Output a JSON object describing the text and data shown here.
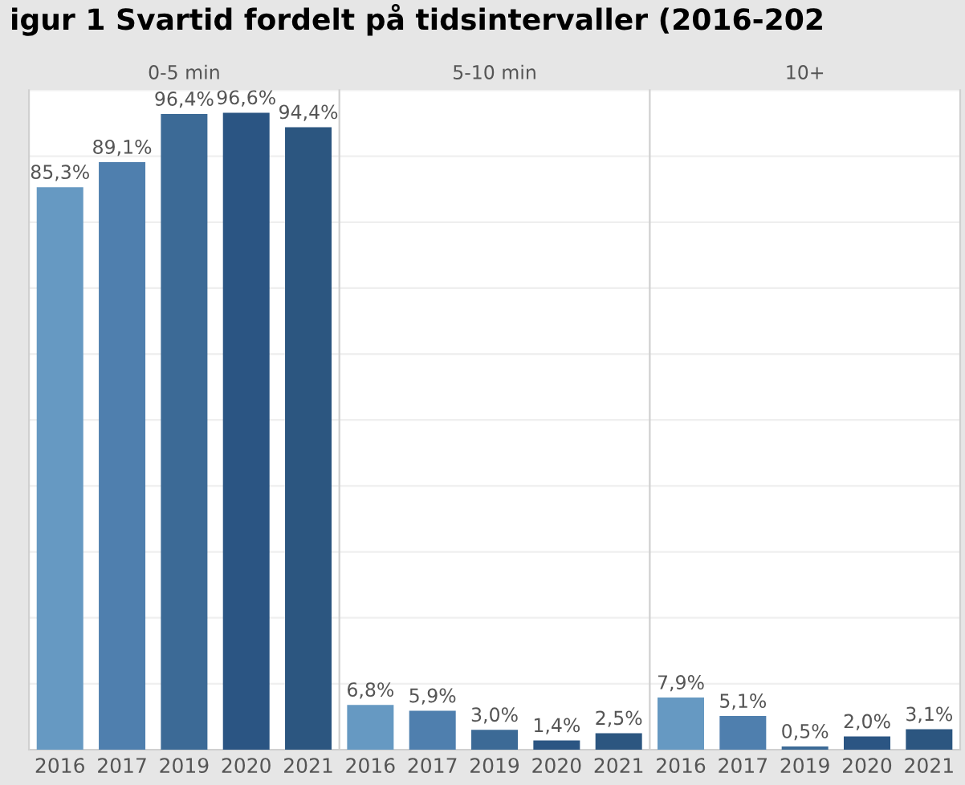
{
  "chart_data": [
    {
      "type": "bar",
      "title": "0-5 min",
      "annotations": [
        "igur 1 Svartid fordelt på tidsintervaller (2016-202"
      ],
      "categories": [
        "2016",
        "2017",
        "2019",
        "2020",
        "2021"
      ],
      "values": [
        85.3,
        89.1,
        96.4,
        96.6,
        94.4
      ],
      "value_labels": [
        "85,3%",
        "89,1%",
        "96,4%",
        "96,6%",
        "94,4%"
      ],
      "colors": [
        "#6699c2",
        "#4f7fae",
        "#3c6a96",
        "#2b5583",
        "#2c5680"
      ],
      "ylim": [
        0,
        100
      ],
      "yticks": [
        {
          "value": 0,
          "label": null
        },
        {
          "value": 10,
          "label": null
        },
        {
          "value": 20,
          "label": null
        },
        {
          "value": 30,
          "label": null
        },
        {
          "value": 40,
          "label": null
        },
        {
          "value": 50,
          "label": null
        },
        {
          "value": 60,
          "label": null
        },
        {
          "value": 70,
          "label": null
        },
        {
          "value": 80,
          "label": null
        },
        {
          "value": 90,
          "label": null
        },
        {
          "value": 100,
          "label": null
        }
      ],
      "tick_labels": "x",
      "grid": "y"
    },
    {
      "type": "bar",
      "title": "5-10 min",
      "categories": [
        "2016",
        "2017",
        "2019",
        "2020",
        "2021"
      ],
      "values": [
        6.8,
        5.9,
        3.0,
        1.4,
        2.5
      ],
      "value_labels": [
        "6,8%",
        "5,9%",
        "3,0%",
        "1,4%",
        "2,5%"
      ],
      "colors": [
        "#6699c2",
        "#4f7fae",
        "#3c6a96",
        "#2b5583",
        "#2c5680"
      ],
      "ylim": [
        0,
        100
      ],
      "yticks": [
        {
          "value": 0,
          "label": null
        },
        {
          "value": 10,
          "label": null
        },
        {
          "value": 20,
          "label": null
        },
        {
          "value": 30,
          "label": null
        },
        {
          "value": 40,
          "label": null
        },
        {
          "value": 50,
          "label": null
        },
        {
          "value": 60,
          "label": null
        },
        {
          "value": 70,
          "label": null
        },
        {
          "value": 80,
          "label": null
        },
        {
          "value": 90,
          "label": null
        },
        {
          "value": 100,
          "label": null
        }
      ],
      "tick_labels": "x",
      "grid": "y"
    },
    {
      "type": "bar",
      "title": "10+",
      "categories": [
        "2016",
        "2017",
        "2019",
        "2020",
        "2021"
      ],
      "values": [
        7.9,
        5.1,
        0.5,
        2.0,
        3.1
      ],
      "value_labels": [
        "7,9%",
        "5,1%",
        "0,5%",
        "2,0%",
        "3,1%"
      ],
      "colors": [
        "#6699c2",
        "#4f7fae",
        "#3c6a96",
        "#2b5583",
        "#2c5680"
      ],
      "ylim": [
        0,
        100
      ],
      "yticks": [
        {
          "value": 0,
          "label": null
        },
        {
          "value": 10,
          "label": null
        },
        {
          "value": 20,
          "label": null
        },
        {
          "value": 30,
          "label": null
        },
        {
          "value": 40,
          "label": null
        },
        {
          "value": 50,
          "label": null
        },
        {
          "value": 60,
          "label": null
        },
        {
          "value": 70,
          "label": null
        },
        {
          "value": 80,
          "label": null
        },
        {
          "value": 90,
          "label": null
        },
        {
          "value": 100,
          "label": null
        }
      ],
      "tick_labels": "x",
      "grid": "y"
    }
  ]
}
